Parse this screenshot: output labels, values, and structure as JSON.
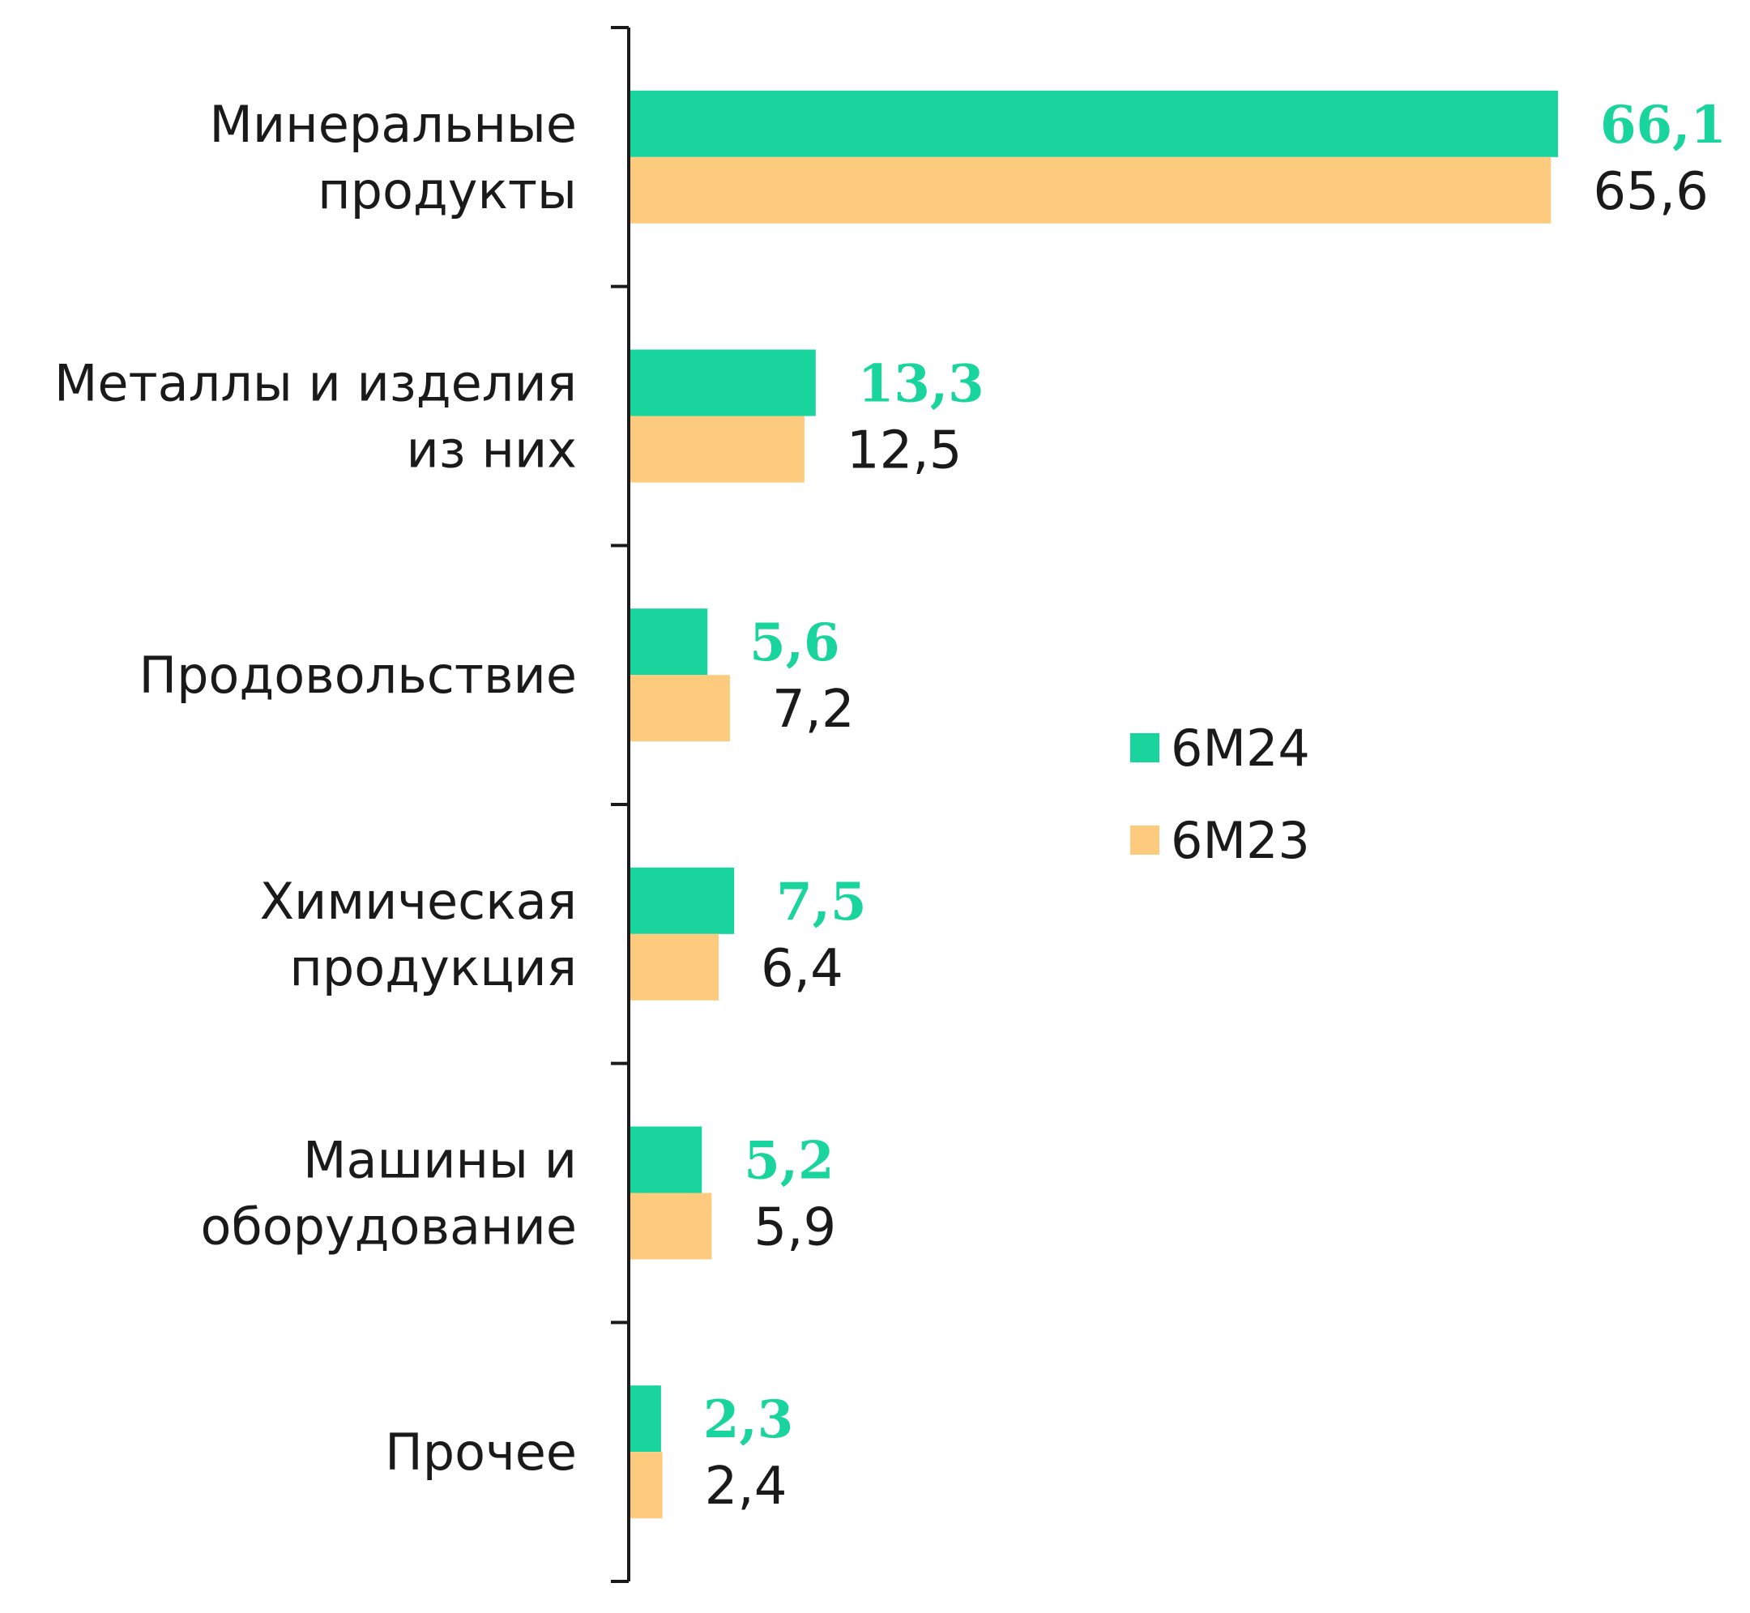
{
  "chart_data": {
    "type": "bar",
    "orientation": "horizontal",
    "categories": [
      [
        "Минеральные",
        "продукты"
      ],
      [
        "Металлы и изделия",
        "из них"
      ],
      [
        "Продовольствие"
      ],
      [
        "Химическая",
        "продукция"
      ],
      [
        "Машины и",
        "оборудование"
      ],
      [
        "Прочее"
      ]
    ],
    "series": [
      {
        "name": "6M24",
        "color": "#19d49c",
        "values": [
          66.1,
          13.3,
          5.6,
          7.5,
          5.2,
          2.3
        ],
        "labels": [
          "66,1",
          "13,3",
          "5,6",
          "7,5",
          "5,2",
          "2,3"
        ]
      },
      {
        "name": "6M23",
        "color": "#fdcb7e",
        "values": [
          65.6,
          12.5,
          7.2,
          6.4,
          5.9,
          2.4
        ],
        "labels": [
          "65,6",
          "12,5",
          "7,2",
          "6,4",
          "5,9",
          "2,4"
        ]
      }
    ],
    "xlim": [
      0,
      66.1
    ],
    "legend_position": "right-middle",
    "grid": false
  }
}
